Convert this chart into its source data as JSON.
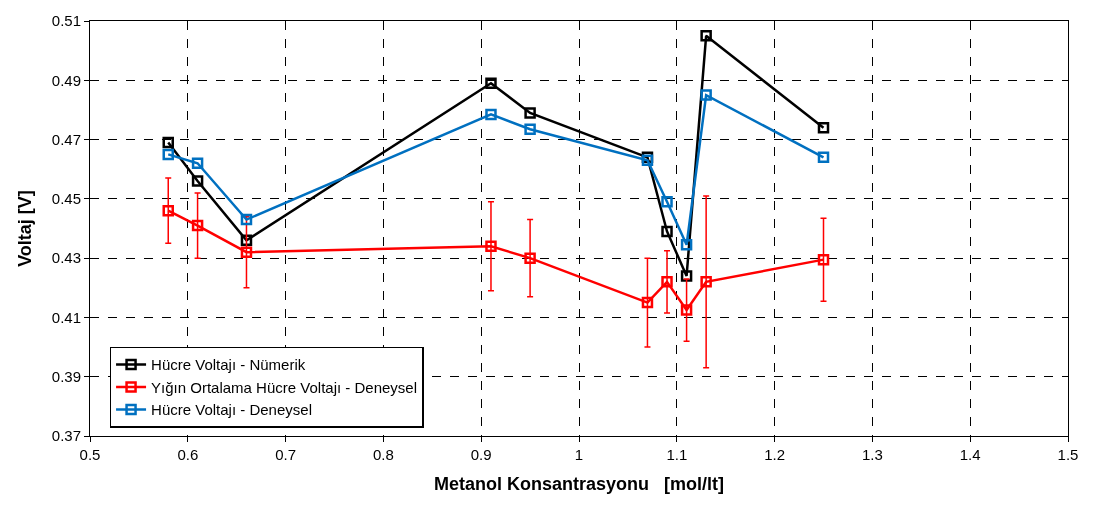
{
  "chart_data": {
    "type": "line",
    "xlabel": "Metanol Konsantrasyonu   [mol/lt]",
    "ylabel": "Voltaj [V]",
    "x": [
      0.58,
      0.61,
      0.66,
      0.91,
      0.95,
      1.07,
      1.09,
      1.11,
      1.13,
      1.25
    ],
    "series": [
      {
        "name": "Hücre Voltajı - Nümerik",
        "color": "#000000",
        "values": [
          0.469,
          0.456,
          0.436,
          0.489,
          0.479,
          0.464,
          0.439,
          0.424,
          0.505,
          0.474
        ]
      },
      {
        "name": "Yığın Ortalama Hücre Voltajı - Deneysel",
        "color": "#ff0000",
        "values": [
          0.446,
          0.441,
          0.432,
          0.434,
          0.43,
          0.415,
          0.422,
          0.4125,
          0.422,
          0.4295
        ],
        "errors": [
          0.011,
          0.011,
          0.012,
          0.015,
          0.013,
          0.015,
          0.0105,
          0.0105,
          0.029,
          0.014
        ]
      },
      {
        "name": "Hücre Voltajı - Deneysel",
        "color": "#0070c0",
        "values": [
          0.465,
          0.462,
          0.443,
          0.4785,
          0.4735,
          0.463,
          0.449,
          0.4345,
          0.485,
          0.464
        ]
      }
    ],
    "xlim": [
      0.5,
      1.5
    ],
    "xticks": [
      0.5,
      0.6,
      0.7,
      0.8,
      0.9,
      1,
      1.1,
      1.2,
      1.3,
      1.4,
      1.5
    ],
    "ylim": [
      0.37,
      0.51
    ],
    "yticks": [
      0.37,
      0.39,
      0.41,
      0.43,
      0.45,
      0.47,
      0.49,
      0.51
    ],
    "grid": true,
    "legend": "bottom left",
    "marker": "square",
    "line_style": "solid"
  }
}
